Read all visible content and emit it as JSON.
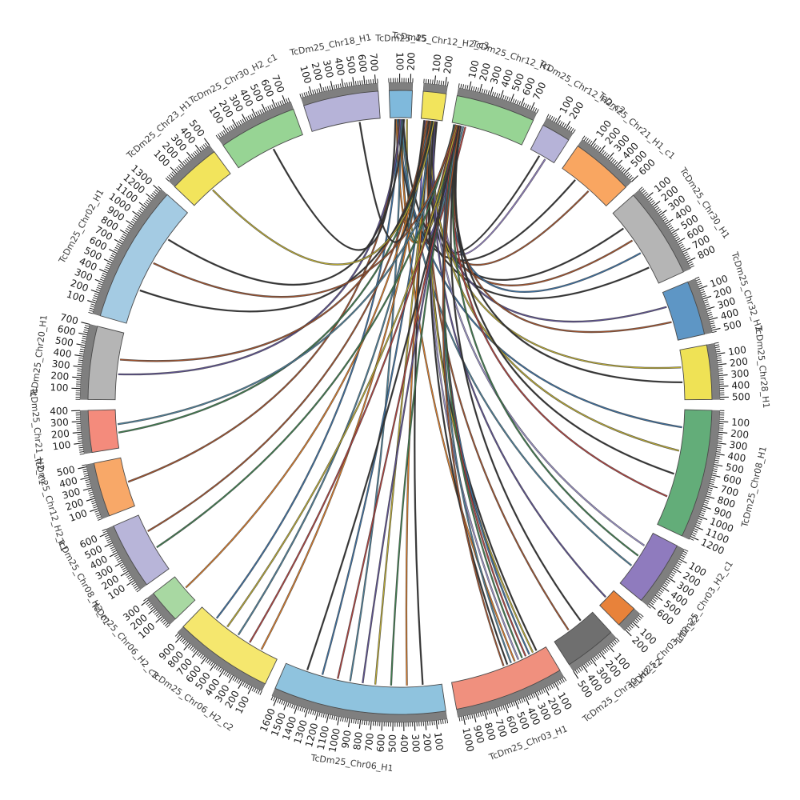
{
  "figure": {
    "background": "#ffffff",
    "axis_band_color": "#7f7f7f",
    "tick_color": "#1a1a1a",
    "label_color": "#3a3a3a"
  },
  "chart_data": {
    "type": "chord",
    "title": "",
    "axis": {
      "major_tick_interval": 100,
      "minor_tick_interval": 20
    },
    "layout": {
      "start_angle_deg": -2,
      "gap_deg": 2,
      "center": [
        500,
        503
      ],
      "band_outer_r": 400,
      "band_inner_r": 390,
      "color_inner_r": 356,
      "tick_minor_r": 405.5,
      "tick_major_r": 411,
      "tick_label_r": 415,
      "name_label_r": 455,
      "link_r": 354
    },
    "segments": [
      {
        "label": "TcDm25_45",
        "length": 220,
        "color": "#7fb9dc"
      },
      {
        "label": "TcDm25_Chr12_H2_c3",
        "length": 220,
        "color": "#f2e45c"
      },
      {
        "label": "TcDm25_Chr12_H1",
        "length": 760,
        "color": "#97d494"
      },
      {
        "label": "TcDm25_Chr12_H2_c2",
        "length": 280,
        "color": "#b6b3d8"
      },
      {
        "label": "TcDm25_Chr21_H1_c1",
        "length": 600,
        "color": "#f9a661"
      },
      {
        "label": "TcDm25_Chr30_H1",
        "length": 870,
        "color": "#b5b5b5"
      },
      {
        "label": "TcDm25_Chr32_H2",
        "length": 520,
        "color": "#5e96c5"
      },
      {
        "label": "TcDm25_Chr28_H1",
        "length": 520,
        "color": "#efe255"
      },
      {
        "label": "TcDm25_Chr08_H1",
        "length": 1230,
        "color": "#63ad79"
      },
      {
        "label": "TcDm25_Chr03_H2_c1",
        "length": 620,
        "color": "#8f7bbe"
      },
      {
        "label": "TcDm25_Chr03_H2_c2",
        "length": 210,
        "color": "#e8823a"
      },
      {
        "label": "TcDm25_Chr30_H2_c2",
        "length": 500,
        "color": "#6f6f6f"
      },
      {
        "label": "TcDm25_Chr03_H1",
        "length": 1050,
        "color": "#f0907e"
      },
      {
        "label": "TcDm25_Chr06_H1",
        "length": 1650,
        "color": "#8fc3de"
      },
      {
        "label": "TcDm25_Chr06_H2_c2",
        "length": 950,
        "color": "#f5e76e"
      },
      {
        "label": "TcDm25_Chr06_H2_c3",
        "length": 320,
        "color": "#a8d8a2"
      },
      {
        "label": "TcDm25_Chr08_H2_c1",
        "length": 640,
        "color": "#b8b5d9"
      },
      {
        "label": "TcDm25_Chr12_H2_c1",
        "length": 520,
        "color": "#f8a868"
      },
      {
        "label": "TcDm25_Chr21_H2_c1",
        "length": 400,
        "color": "#f48b7c"
      },
      {
        "label": "TcDm25_Chr20_H1",
        "length": 700,
        "color": "#b5b5b5"
      },
      {
        "label": "TcDm25_Chr02_H1",
        "length": 1320,
        "color": "#a4cbe3"
      },
      {
        "label": "TcDm25_Chr23_H1",
        "length": 500,
        "color": "#f2e45c"
      },
      {
        "label": "TcDm25_Chr30_H2_c1",
        "length": 750,
        "color": "#97d494"
      },
      {
        "label": "TcDm25_Chr18_H1",
        "length": 720,
        "color": "#b6b3d8"
      }
    ],
    "links": [
      [
        0,
        0.3,
        2,
        0.04,
        "#d97b29"
      ],
      [
        0,
        0.55,
        2,
        0.07,
        "#3e7d4e"
      ],
      [
        0,
        0.8,
        2,
        0.1,
        "#b8a832"
      ],
      [
        1,
        0.2,
        2,
        0.13,
        "#6a5acd"
      ],
      [
        1,
        0.45,
        2,
        0.16,
        "#4c7f99"
      ],
      [
        1,
        0.7,
        2,
        0.19,
        "#b0413e"
      ],
      [
        1,
        0.75,
        3,
        0.4,
        "#333333"
      ],
      [
        2,
        0.05,
        3,
        0.65,
        "#8f7bbe"
      ],
      [
        0,
        0.4,
        4,
        0.3,
        "#333333"
      ],
      [
        1,
        0.5,
        4,
        0.6,
        "#a0522d"
      ],
      [
        1,
        0.3,
        5,
        0.22,
        "#333333"
      ],
      [
        1,
        0.52,
        5,
        0.4,
        "#a0522d"
      ],
      [
        2,
        0.06,
        5,
        0.58,
        "#3b6fa0"
      ],
      [
        0,
        0.62,
        5,
        0.78,
        "#333333"
      ],
      [
        1,
        0.42,
        6,
        0.3,
        "#5c5090"
      ],
      [
        2,
        0.08,
        6,
        0.62,
        "#a0522d"
      ],
      [
        1,
        0.47,
        7,
        0.35,
        "#b8a832"
      ],
      [
        2,
        0.1,
        7,
        0.65,
        "#333333"
      ],
      [
        0,
        0.35,
        8,
        0.15,
        "#3b6fa0"
      ],
      [
        1,
        0.56,
        8,
        0.35,
        "#b8a832"
      ],
      [
        2,
        0.12,
        8,
        0.55,
        "#333333"
      ],
      [
        2,
        0.07,
        8,
        0.75,
        "#b0413e"
      ],
      [
        1,
        0.62,
        9,
        0.25,
        "#9990c8"
      ],
      [
        2,
        0.09,
        9,
        0.45,
        "#3e7d4e"
      ],
      [
        0,
        0.56,
        9,
        0.65,
        "#4c7f99"
      ],
      [
        1,
        0.66,
        10,
        0.5,
        "#5c5090"
      ],
      [
        2,
        0.11,
        11,
        0.3,
        "#333333"
      ],
      [
        1,
        0.36,
        11,
        0.62,
        "#a0522d"
      ],
      [
        1,
        0.5,
        12,
        0.1,
        "#333333"
      ],
      [
        1,
        0.54,
        12,
        0.14,
        "#b8a832"
      ],
      [
        2,
        0.03,
        12,
        0.18,
        "#3b6fa0"
      ],
      [
        2,
        0.05,
        12,
        0.22,
        "#b0413e"
      ],
      [
        2,
        0.07,
        12,
        0.26,
        "#3e7d4e"
      ],
      [
        1,
        0.58,
        12,
        0.3,
        "#9990c8"
      ],
      [
        0,
        0.48,
        12,
        0.34,
        "#d97b29"
      ],
      [
        2,
        0.09,
        12,
        0.38,
        "#4c7f99"
      ],
      [
        1,
        0.62,
        12,
        0.42,
        "#333333"
      ],
      [
        2,
        0.11,
        12,
        0.46,
        "#a0522d"
      ],
      [
        1,
        0.4,
        13,
        0.12,
        "#333333"
      ],
      [
        1,
        0.44,
        13,
        0.22,
        "#d97b29"
      ],
      [
        2,
        0.04,
        13,
        0.32,
        "#3e7d4e"
      ],
      [
        1,
        0.48,
        13,
        0.42,
        "#b8a832"
      ],
      [
        2,
        0.06,
        13,
        0.5,
        "#5c5090"
      ],
      [
        0,
        0.52,
        13,
        0.58,
        "#4c7f99"
      ],
      [
        2,
        0.08,
        13,
        0.66,
        "#b0413e"
      ],
      [
        1,
        0.52,
        13,
        0.76,
        "#3b6fa0"
      ],
      [
        2,
        0.1,
        13,
        0.86,
        "#333333"
      ],
      [
        1,
        0.28,
        14,
        0.2,
        "#d97b29"
      ],
      [
        2,
        0.05,
        14,
        0.35,
        "#b0413e"
      ],
      [
        1,
        0.32,
        14,
        0.5,
        "#4c7f99"
      ],
      [
        2,
        0.07,
        14,
        0.65,
        "#b8a832"
      ],
      [
        0,
        0.44,
        14,
        0.8,
        "#3b6fa0"
      ],
      [
        1,
        0.26,
        15,
        0.5,
        "#d97b29"
      ],
      [
        2,
        0.04,
        16,
        0.4,
        "#3e7d4e"
      ],
      [
        1,
        0.3,
        16,
        0.7,
        "#a0522d"
      ],
      [
        0,
        0.46,
        17,
        0.5,
        "#a0522d"
      ],
      [
        1,
        0.51,
        18,
        0.4,
        "#3e7d4e"
      ],
      [
        2,
        0.05,
        18,
        0.62,
        "#4c7f99"
      ],
      [
        0,
        0.5,
        19,
        0.38,
        "#5c5090"
      ],
      [
        1,
        0.46,
        19,
        0.6,
        "#a0522d"
      ],
      [
        1,
        0.56,
        20,
        0.28,
        "#333333"
      ],
      [
        2,
        0.06,
        20,
        0.52,
        "#a0522d"
      ],
      [
        0,
        0.66,
        20,
        0.74,
        "#333333"
      ],
      [
        1,
        0.61,
        21,
        0.5,
        "#b8a832"
      ],
      [
        0,
        0.25,
        22,
        0.55,
        "#333333"
      ],
      [
        1,
        0.15,
        23,
        0.7,
        "#333333"
      ]
    ]
  }
}
